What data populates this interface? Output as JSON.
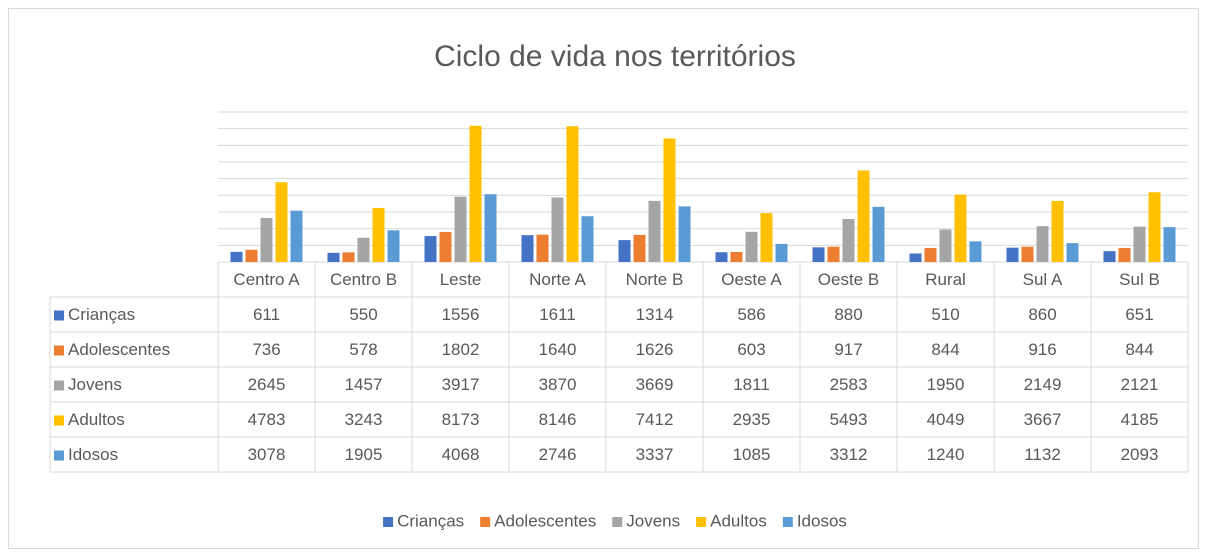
{
  "chart_data": {
    "type": "bar",
    "title": "Ciclo de vida nos territórios",
    "categories": [
      "Centro A",
      "Centro B",
      "Leste",
      "Norte A",
      "Norte B",
      "Oeste A",
      "Oeste B",
      "Rural",
      "Sul A",
      "Sul B"
    ],
    "series": [
      {
        "name": "Crianças",
        "color": "#4472c4",
        "values": [
          611,
          550,
          1556,
          1611,
          1314,
          586,
          880,
          510,
          860,
          651
        ]
      },
      {
        "name": "Adolescentes",
        "color": "#ed7d31",
        "values": [
          736,
          578,
          1802,
          1640,
          1626,
          603,
          917,
          844,
          916,
          844
        ]
      },
      {
        "name": "Jovens",
        "color": "#a5a5a5",
        "values": [
          2645,
          1457,
          3917,
          3870,
          3669,
          1811,
          2583,
          1950,
          2149,
          2121
        ]
      },
      {
        "name": "Adultos",
        "color": "#ffc000",
        "values": [
          4783,
          3243,
          8173,
          8146,
          7412,
          2935,
          5493,
          4049,
          3667,
          4185
        ]
      },
      {
        "name": "Idosos",
        "color": "#5b9bd5",
        "values": [
          3078,
          1905,
          4068,
          2746,
          3337,
          1085,
          3312,
          1240,
          1132,
          2093
        ]
      }
    ],
    "ylim": [
      0,
      9000
    ],
    "yticks": [
      0,
      1000,
      2000,
      3000,
      4000,
      5000,
      6000,
      7000,
      8000,
      9000
    ],
    "grid": true,
    "legend": "bottom"
  }
}
